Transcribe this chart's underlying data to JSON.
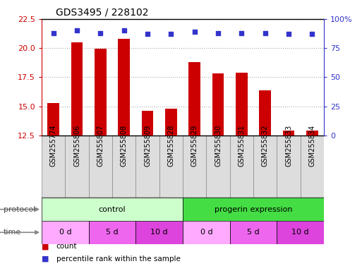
{
  "title": "GDS3495 / 228102",
  "samples": [
    "GSM255774",
    "GSM255806",
    "GSM255807",
    "GSM255808",
    "GSM255809",
    "GSM255828",
    "GSM255829",
    "GSM255830",
    "GSM255831",
    "GSM255832",
    "GSM255833",
    "GSM255834"
  ],
  "counts": [
    15.3,
    20.5,
    19.95,
    20.8,
    14.6,
    14.8,
    18.8,
    17.8,
    17.9,
    16.4,
    12.9,
    12.9
  ],
  "percentiles": [
    88,
    90,
    88,
    90,
    87,
    87,
    89,
    88,
    88,
    88,
    87,
    87
  ],
  "ylim_left": [
    12.5,
    22.5
  ],
  "ylim_right": [
    0,
    100
  ],
  "yticks_left": [
    12.5,
    15.0,
    17.5,
    20.0,
    22.5
  ],
  "yticks_right": [
    0,
    25,
    50,
    75,
    100
  ],
  "bar_color": "#cc0000",
  "dot_color": "#3333cc",
  "protocol_groups": [
    {
      "label": "control",
      "start": 0,
      "end": 5,
      "color": "#ccffcc"
    },
    {
      "label": "progerin expression",
      "start": 6,
      "end": 11,
      "color": "#44dd44"
    }
  ],
  "time_groups": [
    {
      "label": "0 d",
      "start": 0,
      "end": 1,
      "color": "#ffaaff"
    },
    {
      "label": "5 d",
      "start": 2,
      "end": 3,
      "color": "#ee66ee"
    },
    {
      "label": "10 d",
      "start": 4,
      "end": 5,
      "color": "#dd44dd"
    },
    {
      "label": "0 d",
      "start": 6,
      "end": 7,
      "color": "#ffaaff"
    },
    {
      "label": "5 d",
      "start": 8,
      "end": 9,
      "color": "#ee66ee"
    },
    {
      "label": "10 d",
      "start": 10,
      "end": 11,
      "color": "#dd44dd"
    }
  ],
  "legend_count_color": "#cc0000",
  "legend_pct_color": "#3333cc",
  "protocol_label": "protocol",
  "time_label": "time",
  "grid_color": "#aaaaaa",
  "background_color": "#ffffff",
  "tick_color_left": "#cc0000",
  "tick_color_right": "#3333cc",
  "sample_box_color": "#dddddd",
  "sample_box_edge": "#888888"
}
